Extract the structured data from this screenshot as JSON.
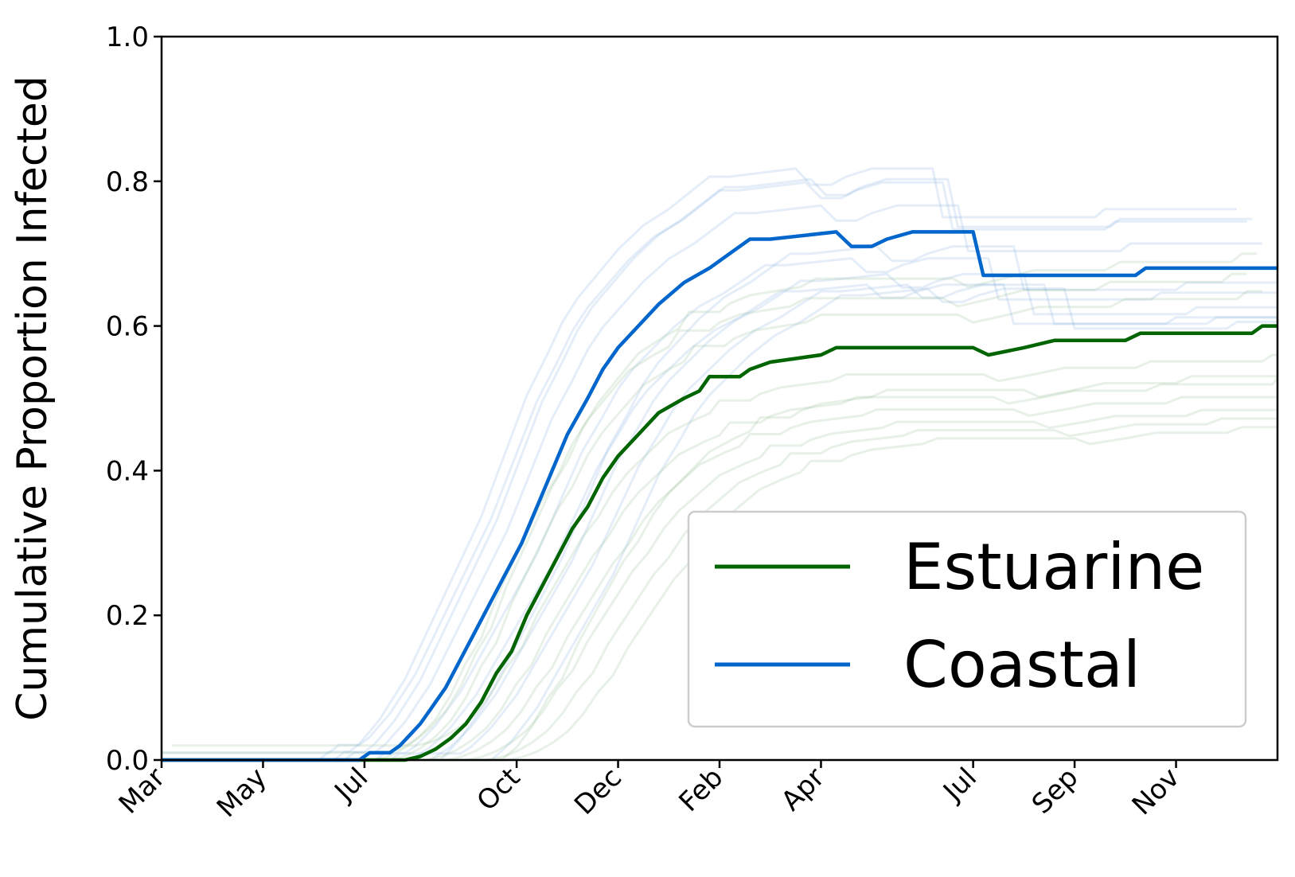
{
  "chart_data": {
    "type": "line",
    "title": "",
    "xlabel": "",
    "ylabel": "Cumulative Proportion Infected",
    "ylim": [
      0,
      1
    ],
    "yticks": [
      "0.0",
      "0.2",
      "0.4",
      "0.6",
      "0.8",
      "1.0"
    ],
    "x_tick_labels": [
      "Mar",
      "May",
      "Jul",
      "Oct",
      "Dec",
      "Feb",
      "Apr",
      "Jul",
      "Sep",
      "Nov"
    ],
    "x_tick_positions_months": [
      0,
      2,
      4,
      7,
      9,
      11,
      13,
      16,
      18,
      20
    ],
    "xlim_months": [
      0,
      22
    ],
    "grid": false,
    "legend_location": "lower right",
    "colors": {
      "estuarine": "#006400",
      "coastal": "#0066CC",
      "estuarine_band": "#7fb07f",
      "coastal_band": "#6fa0d8"
    },
    "series": [
      {
        "name": "Estuarine",
        "color": "#006400",
        "x": [
          0,
          4,
          4.8,
          5.1,
          5.4,
          5.7,
          6.0,
          6.3,
          6.6,
          6.9,
          7.2,
          7.5,
          7.8,
          8.1,
          8.4,
          8.7,
          9.0,
          9.4,
          9.8,
          10.3,
          10.6,
          10.8,
          11.4,
          11.6,
          12.0,
          13.0,
          13.3,
          16.0,
          16.3,
          17.0,
          17.6,
          19.0,
          19.3,
          21.5,
          21.7,
          22
        ],
        "y": [
          0,
          0,
          0,
          0.005,
          0.015,
          0.03,
          0.05,
          0.08,
          0.12,
          0.15,
          0.2,
          0.24,
          0.28,
          0.32,
          0.35,
          0.39,
          0.42,
          0.45,
          0.48,
          0.5,
          0.51,
          0.53,
          0.53,
          0.54,
          0.55,
          0.56,
          0.57,
          0.57,
          0.56,
          0.57,
          0.58,
          0.58,
          0.59,
          0.59,
          0.6,
          0.6
        ]
      },
      {
        "name": "Coastal",
        "color": "#0066CC",
        "x": [
          0,
          3.9,
          4.1,
          4.5,
          4.7,
          4.9,
          5.1,
          5.3,
          5.6,
          5.9,
          6.2,
          6.5,
          6.8,
          7.1,
          7.4,
          7.7,
          8.0,
          8.4,
          8.7,
          9.0,
          9.4,
          9.8,
          10.3,
          10.8,
          11.2,
          11.6,
          12.0,
          13.3,
          13.6,
          14.0,
          14.3,
          14.8,
          15.1,
          16.0,
          16.2,
          18.0,
          19.2,
          19.4,
          22
        ],
        "y": [
          0,
          0,
          0.01,
          0.01,
          0.02,
          0.035,
          0.05,
          0.07,
          0.1,
          0.14,
          0.18,
          0.22,
          0.26,
          0.3,
          0.35,
          0.4,
          0.45,
          0.5,
          0.54,
          0.57,
          0.6,
          0.63,
          0.66,
          0.68,
          0.7,
          0.72,
          0.72,
          0.73,
          0.71,
          0.71,
          0.72,
          0.73,
          0.73,
          0.73,
          0.67,
          0.67,
          0.67,
          0.68,
          0.68
        ]
      }
    ]
  }
}
